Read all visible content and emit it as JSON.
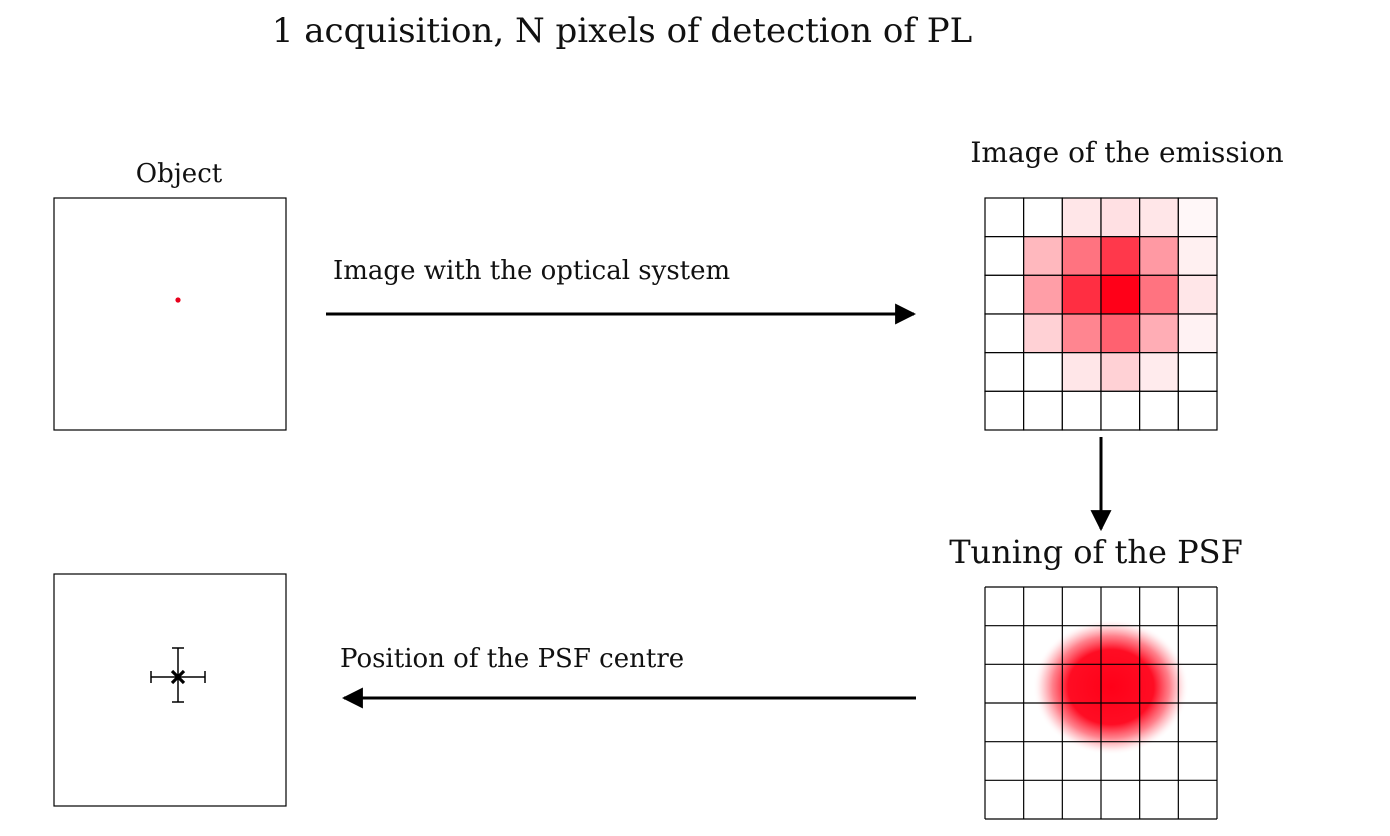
{
  "title": "1 acquisition, N pixels of detection of PL",
  "panels": {
    "object": {
      "label": "Object"
    },
    "emission": {
      "label": "Image of the emission"
    },
    "psf": {
      "label": "Tuning of the PSF"
    },
    "result": {
      "label": ""
    }
  },
  "arrows": {
    "optical": {
      "label": "Image with the optical system"
    },
    "position": {
      "label": "Position of the PSF centre"
    }
  },
  "emission_grid": {
    "rows": 6,
    "cols": 6,
    "intensity": [
      [
        0.0,
        0.0,
        0.1,
        0.12,
        0.1,
        0.03
      ],
      [
        0.0,
        0.28,
        0.55,
        0.78,
        0.4,
        0.06
      ],
      [
        0.0,
        0.38,
        0.82,
        1.0,
        0.55,
        0.1
      ],
      [
        0.0,
        0.18,
        0.48,
        0.62,
        0.32,
        0.05
      ],
      [
        0.0,
        0.0,
        0.1,
        0.18,
        0.08,
        0.0
      ],
      [
        0.0,
        0.0,
        0.0,
        0.0,
        0.0,
        0.0
      ]
    ]
  },
  "psf_grid": {
    "rows": 6,
    "cols": 6
  },
  "colors": {
    "emission": "#ff0018",
    "object_dot": "#e8001c",
    "line": "#000000"
  }
}
